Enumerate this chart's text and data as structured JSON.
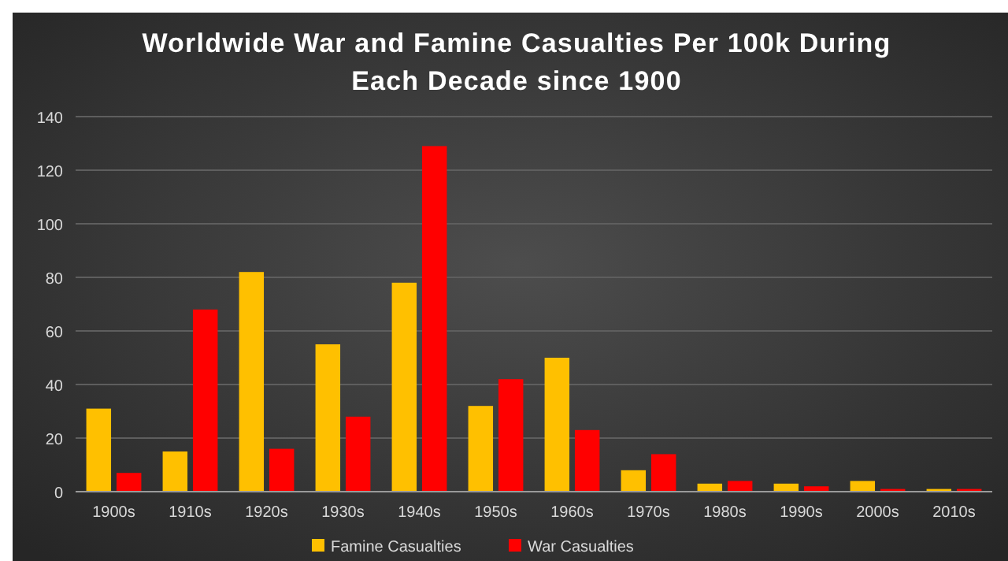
{
  "chart_data": {
    "type": "bar",
    "title": "Worldwide War and Famine Casualties Per 100k During Each Decade since 1900",
    "categories": [
      "1900s",
      "1910s",
      "1920s",
      "1930s",
      "1940s",
      "1950s",
      "1960s",
      "1970s",
      "1980s",
      "1990s",
      "2000s",
      "2010s"
    ],
    "series": [
      {
        "name": "Famine Casualties",
        "color": "#ffc000",
        "values": [
          31,
          15,
          82,
          55,
          78,
          32,
          50,
          8,
          3,
          3,
          4,
          1
        ]
      },
      {
        "name": "War Casualties",
        "color": "#ff0000",
        "values": [
          7,
          68,
          16,
          28,
          129,
          42,
          23,
          14,
          4,
          2,
          1,
          1
        ]
      }
    ],
    "ylim": [
      0,
      140
    ],
    "yticks": [
      0,
      20,
      40,
      60,
      80,
      100,
      120,
      140
    ],
    "grid": "y",
    "legend": "bottom"
  }
}
